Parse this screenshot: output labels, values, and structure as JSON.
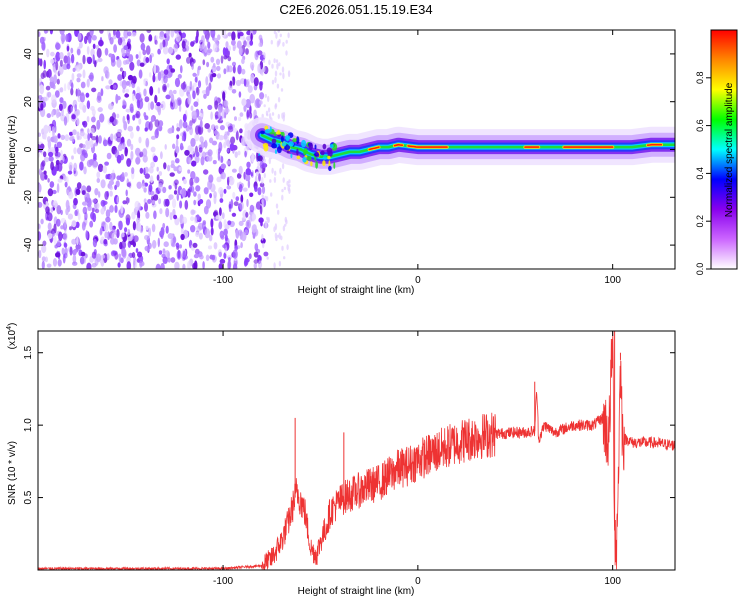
{
  "title": "C2E6.2026.051.15.19.E34",
  "colorbar": {
    "label": "Normalized spectral amplitude",
    "ticks": [
      "0.0",
      "0.2",
      "0.4",
      "0.6",
      "0.8"
    ],
    "tick_values": [
      0.0,
      0.2,
      0.4,
      0.6,
      0.8
    ],
    "range": [
      0,
      1
    ],
    "colors": [
      "#ffffff",
      "#cc66ff",
      "#8800ee",
      "#0000ff",
      "#00ffff",
      "#00ff00",
      "#ffff00",
      "#ff8800",
      "#ff0000"
    ]
  },
  "chart_data": [
    {
      "type": "heatmap",
      "title": "C2E6.2026.051.15.19.E34",
      "xlabel": "Height of straight line (km)",
      "ylabel": "Frequency (Hz)",
      "xlim": [
        -195,
        132
      ],
      "ylim": [
        -50,
        50
      ],
      "x_ticks": [
        -100,
        0,
        100
      ],
      "x_tick_labels": [
        "-100",
        "0",
        "100"
      ],
      "y_ticks": [
        -40,
        -20,
        0,
        20,
        40
      ],
      "y_tick_labels": [
        "-40",
        "-20",
        "0",
        "20",
        "40"
      ],
      "noise_region_x": [
        -195,
        -80
      ],
      "ridge": {
        "x": [
          -80,
          -75,
          -70,
          -65,
          -60,
          -55,
          -50,
          -45,
          -40,
          -35,
          -30,
          -25,
          -20,
          -15,
          -10,
          0,
          20,
          40,
          60,
          80,
          100,
          110,
          120,
          132
        ],
        "freq": [
          6,
          4,
          3,
          1,
          0,
          -2,
          -3,
          -3,
          -2,
          -1,
          -1,
          0,
          1,
          1,
          2,
          1,
          1,
          1,
          1,
          1,
          1,
          1,
          2,
          2
        ]
      }
    },
    {
      "type": "line",
      "xlabel": "Height of straight line (km)",
      "ylabel": "SNR (10 * v/v)",
      "y_multiplier_label": "(x10",
      "y_multiplier_exp": "4",
      "xlim": [
        -195,
        132
      ],
      "ylim": [
        0,
        1.65
      ],
      "x_ticks": [
        -100,
        0,
        100
      ],
      "x_tick_labels": [
        "-100",
        "0",
        "100"
      ],
      "y_ticks": [
        0.5,
        1.0,
        1.5
      ],
      "y_tick_labels": [
        "0.5",
        "1.0",
        "1.5"
      ],
      "series": [
        {
          "name": "SNR",
          "color": "#ee3333",
          "x": [
            -195,
            -100,
            -80,
            -75,
            -70,
            -66,
            -62,
            -58,
            -55,
            -52,
            -50,
            -47,
            -45,
            -42,
            -38,
            -35,
            -30,
            -25,
            -20,
            -15,
            -10,
            -5,
            0,
            10,
            20,
            30,
            40,
            50,
            55,
            60,
            61,
            62,
            65,
            70,
            80,
            90,
            95,
            98,
            100,
            101,
            102,
            103,
            104,
            105,
            106,
            108,
            110,
            120,
            132
          ],
          "y": [
            0.01,
            0.01,
            0.03,
            0.08,
            0.2,
            0.35,
            0.55,
            0.4,
            0.15,
            0.1,
            0.2,
            0.3,
            0.4,
            0.45,
            0.5,
            0.52,
            0.55,
            0.58,
            0.6,
            0.65,
            0.7,
            0.72,
            0.76,
            0.82,
            0.88,
            0.92,
            0.94,
            0.95,
            0.95,
            0.96,
            1.25,
            0.9,
            1.0,
            0.95,
            1.0,
            1.0,
            1.05,
            0.9,
            1.6,
            0.3,
            0.15,
            0.7,
            1.45,
            0.95,
            0.9,
            0.9,
            0.88,
            0.88,
            0.86
          ]
        }
      ],
      "spikes": [
        {
          "x": -63,
          "y": 1.05
        },
        {
          "x": -38,
          "y": 0.95
        },
        {
          "x": 60,
          "y": 1.3
        },
        {
          "x": 101,
          "y": 1.65
        },
        {
          "x": 104,
          "y": 1.5
        }
      ]
    }
  ]
}
